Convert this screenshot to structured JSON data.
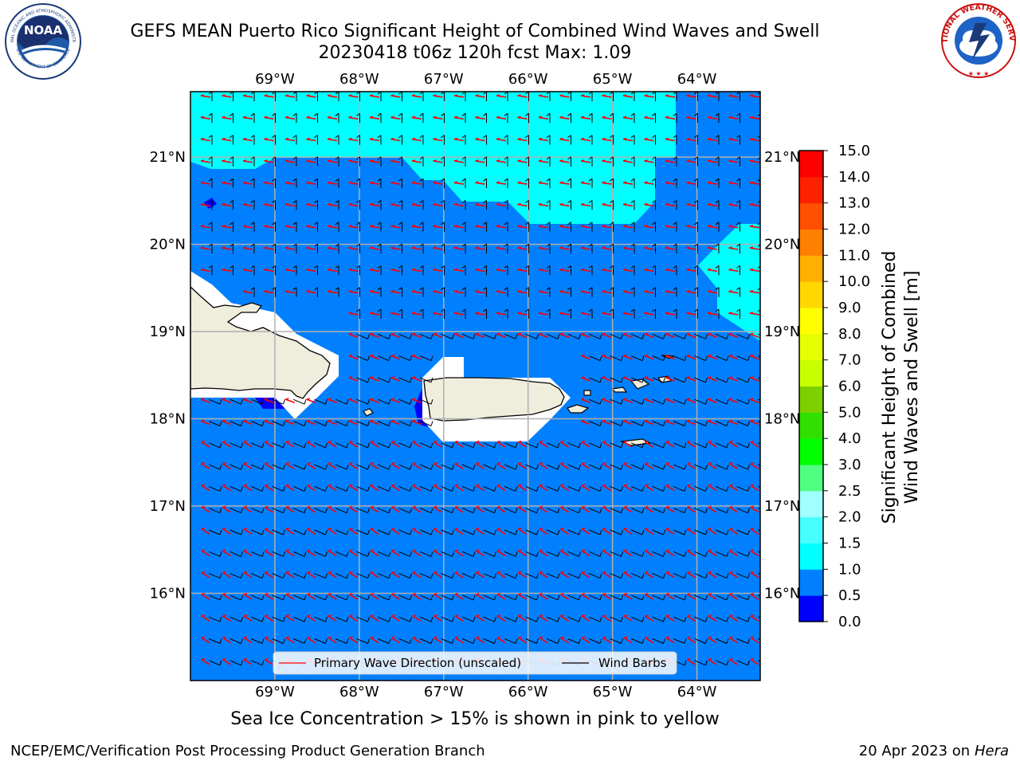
{
  "title": {
    "line1": "GEFS MEAN Puerto Rico Significant Height of Combined Wind Waves and Swell",
    "line2": "20230418 t06z 120h fcst   Max: 1.09"
  },
  "logos": {
    "left": {
      "name": "NOAA",
      "ring_text": "NATIONAL OCEANIC AND ATMOSPHERIC ADMINISTRATION",
      "bottom_text": "U.S. DEPARTMENT OF COMMERCE"
    },
    "right": {
      "name": "NATIONAL WEATHER SERVICE"
    }
  },
  "map": {
    "lon_labels": [
      "69°W",
      "68°W",
      "67°W",
      "66°W",
      "65°W",
      "64°W"
    ],
    "lat_labels": [
      "21°N",
      "20°N",
      "19°N",
      "18°N",
      "17°N",
      "16°N"
    ],
    "lon_values": [
      -69,
      -68,
      -67,
      -66,
      -65,
      -64
    ],
    "lat_values": [
      21,
      20,
      19,
      18,
      17,
      16
    ],
    "extent": {
      "lon": [
        -70,
        -63.25
      ],
      "lat": [
        15.0,
        21.75
      ]
    },
    "colors": {
      "band_0_0_5": "#0000ff",
      "band_0_5_1_0": "#0080ff",
      "band_1_0_1_5": "#00ffff",
      "land": "#efeddc",
      "wave_arrow": "#ff0000",
      "barb": "#000000"
    },
    "legend": {
      "primary_wave": "Primary Wave Direction (unscaled)",
      "wind_barbs": "Wind Barbs"
    }
  },
  "chart_data": {
    "type": "heatmap",
    "title": "GEFS MEAN Puerto Rico Significant Height of Combined Wind Waves and Swell",
    "max": 1.09,
    "units": "m",
    "colorbar": {
      "label": "Significant Height of Combined\nWind Waves and Swell [m]",
      "ticks": [
        "0.0",
        "0.5",
        "1.0",
        "1.5",
        "2.0",
        "2.5",
        "3.0",
        "4.0",
        "5.0",
        "6.0",
        "7.0",
        "8.0",
        "9.0",
        "10.0",
        "11.0",
        "12.0",
        "13.0",
        "14.0",
        "15.0"
      ],
      "colors": [
        "#0000ff",
        "#0080ff",
        "#00ffff",
        "#46ffff",
        "#a0ffff",
        "#50ff80",
        "#00ff00",
        "#30e000",
        "#7cd000",
        "#c8ff00",
        "#e6ff00",
        "#ffff00",
        "#ffd800",
        "#ffb000",
        "#ff8000",
        "#ff5000",
        "#ff2000",
        "#ff0000"
      ]
    }
  },
  "footer": {
    "note": "Sea Ice Concentration > 15% is shown in pink to yellow",
    "left": "NCEP/EMC/Verification Post Processing Product Generation Branch",
    "right_text": "20 Apr 2023 on ",
    "right_italic": "Hera"
  }
}
